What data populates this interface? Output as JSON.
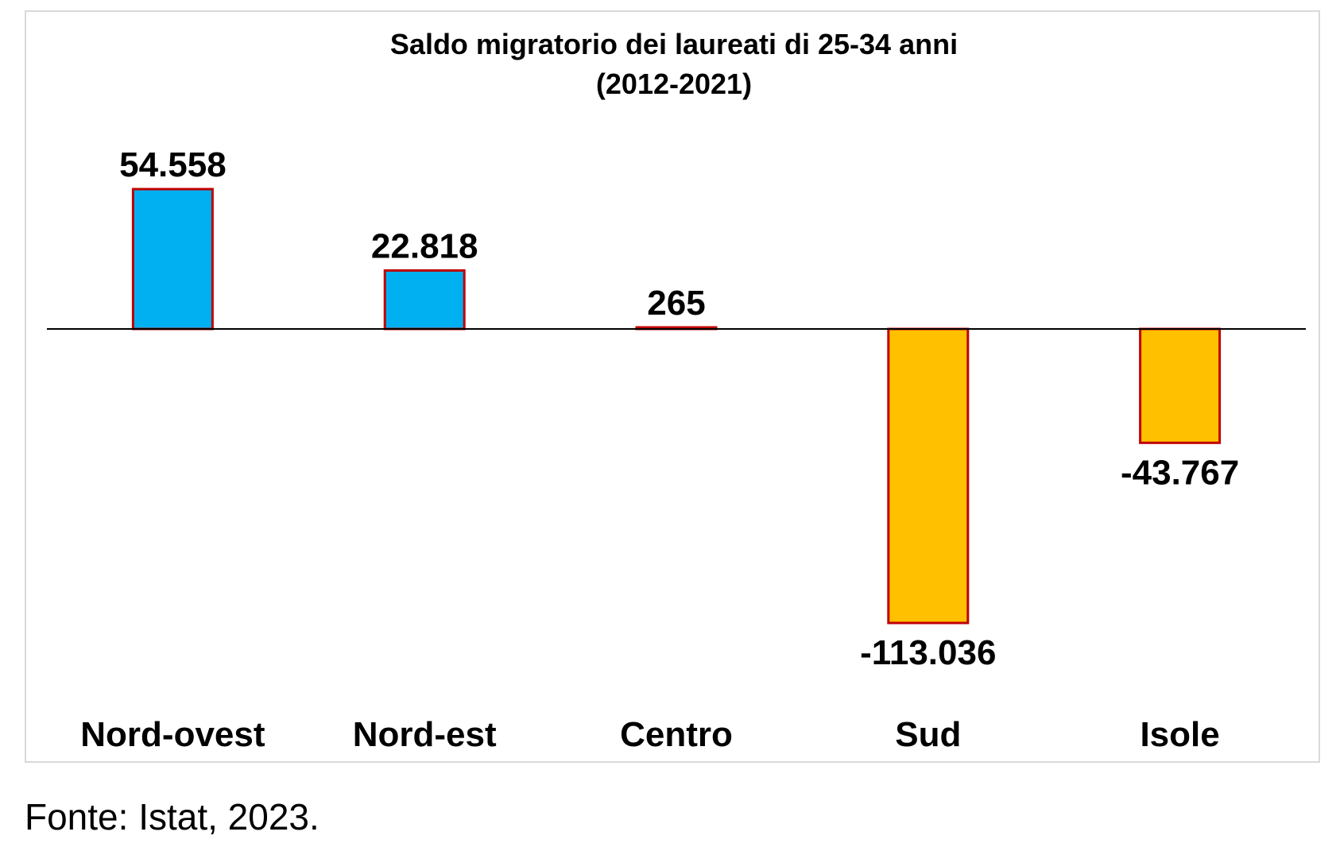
{
  "chart_data": {
    "type": "bar",
    "title": [
      "Saldo migratorio dei laureati di 25-34 anni",
      "(2012-2021)"
    ],
    "categories": [
      "Nord-ovest",
      "Nord-est",
      "Centro",
      "Sud",
      "Isole"
    ],
    "values": [
      54558,
      22818,
      265,
      -113036,
      -43767
    ],
    "value_labels": [
      "54.558",
      "22.818",
      "265",
      "-113.036",
      "-43.767"
    ],
    "xlabel": "",
    "ylabel": "",
    "ylim": [
      -113036,
      54558
    ],
    "grid": false,
    "legend": "none",
    "colors": {
      "positive_fill": "#00b0f0",
      "negative_fill": "#ffc000",
      "bar_border": "#c00000",
      "axis_line": "#000000"
    }
  },
  "source": "Fonte: Istat, 2023."
}
